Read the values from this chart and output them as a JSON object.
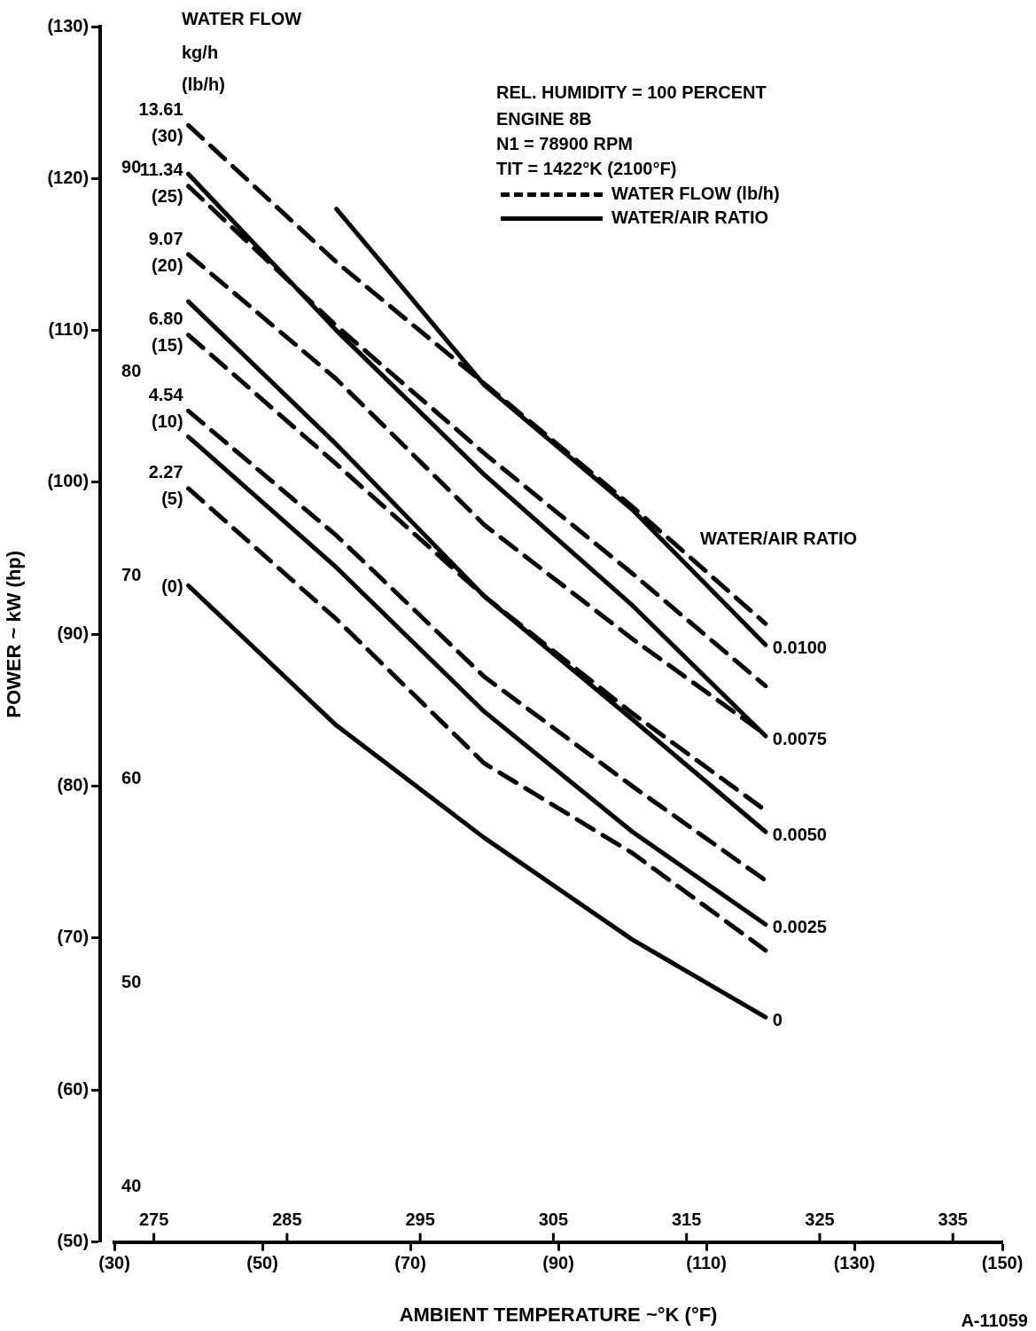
{
  "chart_data": {
    "type": "line",
    "xlabel": "AMBIENT TEMPERATURE ~°K (°F)",
    "ylabel": "POWER ~ kW (hp)",
    "xlim": [
      30,
      150
    ],
    "xticks": [
      {
        "value": 30,
        "label": "(30)"
      },
      {
        "value": 50,
        "label": "(50)"
      },
      {
        "value": 70,
        "label": "(70)"
      },
      {
        "value": 90,
        "label": "(90)"
      },
      {
        "value": 110,
        "label": "(110)"
      },
      {
        "value": 130,
        "label": "(130)"
      },
      {
        "value": 150,
        "label": "(150)"
      }
    ],
    "x2lim": [
      272.04,
      338.71
    ],
    "x2ticks": [
      275,
      285,
      295,
      305,
      315,
      325,
      335
    ],
    "ylim": [
      50,
      130
    ],
    "yticks": [
      {
        "value": 50,
        "label": "(50)"
      },
      {
        "value": 60,
        "label": "(60)"
      },
      {
        "value": 70,
        "label": "(70)"
      },
      {
        "value": 80,
        "label": "(80)"
      },
      {
        "value": 90,
        "label": "(90)"
      },
      {
        "value": 100,
        "label": "(100)"
      },
      {
        "value": 110,
        "label": "(110)"
      },
      {
        "value": 120,
        "label": "(120)"
      },
      {
        "value": 130,
        "label": "(130)"
      }
    ],
    "y2lim": [
      37.29,
      96.94
    ],
    "y2ticks": [
      40,
      50,
      60,
      70,
      80,
      90
    ],
    "grid": false,
    "legend": false,
    "series": [
      {
        "name": "13.61 (30)",
        "color": "#000000",
        "line_style": "dashed",
        "x": [
          40,
          60,
          80,
          100,
          118
        ],
        "values": [
          123.5,
          114.5,
          106.5,
          98.4,
          90.7
        ]
      },
      {
        "name": "11.34 (25)",
        "color": "#000000",
        "line_style": "dashed",
        "x": [
          40,
          60,
          80,
          100,
          118
        ],
        "values": [
          119.5,
          110.3,
          101.9,
          94.0,
          86.6
        ]
      },
      {
        "name": "9.07 (20)",
        "color": "#000000",
        "line_style": "dashed",
        "x": [
          40,
          60,
          80,
          100,
          118
        ],
        "values": [
          115.0,
          106.8,
          97.2,
          89.7,
          83.4
        ]
      },
      {
        "name": "6.80 (15)",
        "color": "#000000",
        "line_style": "dashed",
        "x": [
          40,
          60,
          80,
          100,
          118
        ],
        "values": [
          109.7,
          101.2,
          92.5,
          84.8,
          78.4
        ]
      },
      {
        "name": "4.54 (10)",
        "color": "#000000",
        "line_style": "dashed",
        "x": [
          40,
          60,
          80,
          100,
          118
        ],
        "values": [
          104.7,
          96.5,
          87.2,
          80.0,
          73.8
        ]
      },
      {
        "name": "2.27 (5)",
        "color": "#000000",
        "line_style": "dashed",
        "x": [
          40,
          60,
          80,
          100,
          118
        ],
        "values": [
          99.6,
          91.0,
          81.5,
          75.6,
          69.2
        ]
      },
      {
        "name": "0.0100",
        "color": "#000000",
        "line_style": "solid",
        "x": [
          60,
          70,
          80,
          100,
          118
        ],
        "values": [
          118.0,
          112.2,
          106.4,
          98.2,
          89.3
        ]
      },
      {
        "name": "0.0075",
        "color": "#000000",
        "line_style": "solid",
        "x": [
          40,
          60,
          80,
          100,
          118
        ],
        "values": [
          120.3,
          110.0,
          100.5,
          91.9,
          83.3
        ]
      },
      {
        "name": "0.0050",
        "color": "#000000",
        "line_style": "solid",
        "x": [
          40,
          60,
          80,
          100,
          118
        ],
        "values": [
          111.9,
          102.5,
          92.5,
          84.4,
          77.0
        ]
      },
      {
        "name": "0.0025",
        "color": "#000000",
        "line_style": "solid",
        "x": [
          40,
          60,
          80,
          100,
          118
        ],
        "values": [
          103.0,
          94.4,
          84.9,
          77.0,
          70.9
        ]
      },
      {
        "name": "0",
        "color": "#000000",
        "line_style": "solid",
        "x": [
          40,
          60,
          80,
          100,
          118
        ],
        "values": [
          93.2,
          84.0,
          76.6,
          69.9,
          64.8
        ]
      }
    ],
    "annotations": [
      "WATER FLOW",
      "kg/h",
      "(lb/h)",
      "REL. HUMIDITY = 100 PERCENT",
      "ENGINE 8B",
      "N1 = 78900 RPM",
      "TIT = 1422°K (2100°F)",
      "WATER FLOW (lb/h)",
      "WATER/AIR RATIO",
      "WATER/AIR RATIO",
      "A-11059",
      {
        "text": "(0)",
        "x": 40,
        "y": 93.2
      }
    ]
  }
}
